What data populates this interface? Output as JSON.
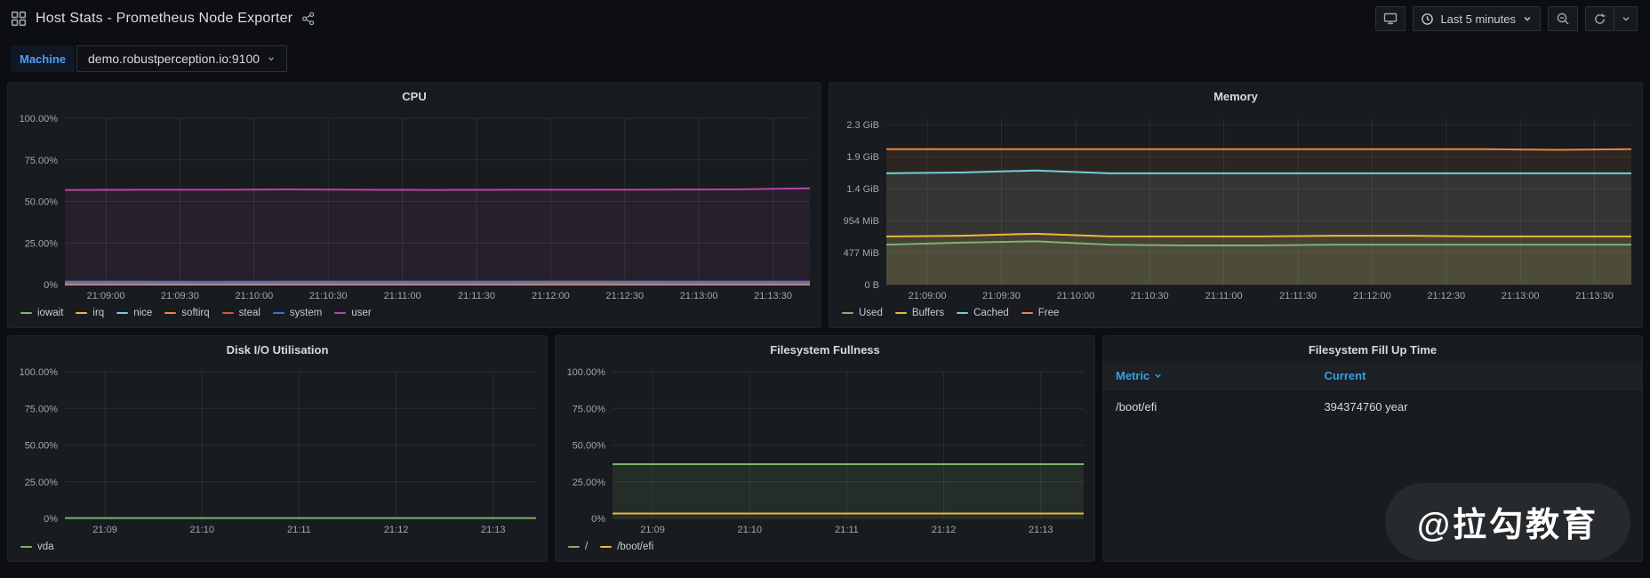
{
  "header": {
    "title": "Host Stats - Prometheus Node Exporter",
    "time_picker_label": "Last 5 minutes"
  },
  "variables": {
    "label": "Machine",
    "value": "demo.robustperception.io:9100"
  },
  "watermark": "@拉勾教育",
  "colors": {
    "green": "#7EB26D",
    "yellow": "#EAB839",
    "cyan": "#6ED0E0",
    "orange": "#EF843C",
    "red": "#E24D42",
    "blue": "#3274D9",
    "purple": "#BA43A9",
    "accent_blue": "#33a2e5"
  },
  "chart_data": [
    {
      "id": "cpu",
      "type": "area",
      "title": "CPU",
      "ylabel": "percent",
      "ylim": [
        0,
        100
      ],
      "y_ticks": [
        {
          "v": 0,
          "label": "0%"
        },
        {
          "v": 25,
          "label": "25.00%"
        },
        {
          "v": 50,
          "label": "50.00%"
        },
        {
          "v": 75,
          "label": "75.00%"
        },
        {
          "v": 100,
          "label": "100.00%"
        }
      ],
      "x_tick_labels": [
        "21:09:00",
        "21:09:30",
        "21:10:00",
        "21:10:30",
        "21:11:00",
        "21:11:30",
        "21:12:00",
        "21:12:30",
        "21:13:00",
        "21:13:30"
      ],
      "x_first_frac": 0.055,
      "x_step_frac": 0.0995,
      "legend_position": "bottom",
      "series": [
        {
          "name": "iowait",
          "color": "#7EB26D",
          "fill_opacity": 0,
          "values": [
            0.3,
            0.3,
            0.3,
            0.3,
            0.3,
            0.3,
            0.3,
            0.3,
            0.3,
            0.3,
            0.3
          ]
        },
        {
          "name": "irq",
          "color": "#EAB839",
          "fill_opacity": 0,
          "values": [
            0.05,
            0.05,
            0.05,
            0.05,
            0.05,
            0.05,
            0.05,
            0.05,
            0.05,
            0.05,
            0.05
          ]
        },
        {
          "name": "nice",
          "color": "#6ED0E0",
          "fill_opacity": 0,
          "values": [
            0.1,
            0.1,
            0.1,
            0.1,
            0.1,
            0.1,
            0.1,
            0.1,
            0.1,
            0.1,
            0.1
          ]
        },
        {
          "name": "softirq",
          "color": "#EF843C",
          "fill_opacity": 0,
          "values": [
            0.9,
            0.9,
            0.9,
            0.9,
            0.9,
            0.9,
            0.9,
            0.9,
            0.9,
            0.9,
            0.9
          ]
        },
        {
          "name": "steal",
          "color": "#E24D42",
          "fill_opacity": 0,
          "values": [
            0.6,
            0.6,
            0.6,
            0.6,
            0.6,
            0.6,
            0.6,
            0.6,
            0.6,
            0.6,
            0.6
          ]
        },
        {
          "name": "system",
          "color": "#3274D9",
          "fill_opacity": 0,
          "values": [
            1.8,
            1.8,
            1.7,
            1.8,
            1.8,
            1.8,
            1.8,
            1.9,
            1.8,
            1.8,
            1.8
          ]
        },
        {
          "name": "user",
          "color": "#BA43A9",
          "fill_opacity": 0.1,
          "values": [
            56.9,
            57,
            57,
            57.2,
            57,
            56.9,
            57,
            57,
            57.1,
            57.2,
            57.9
          ]
        }
      ]
    },
    {
      "id": "memory",
      "type": "area",
      "title": "Memory",
      "ylabel": "bytes (GiB)",
      "ylim": [
        0,
        2.42
      ],
      "y_ticks": [
        {
          "v": 0,
          "label": "0 B"
        },
        {
          "v": 0.466,
          "label": "477 MiB"
        },
        {
          "v": 0.932,
          "label": "954 MiB"
        },
        {
          "v": 1.397,
          "label": "1.4 GiB"
        },
        {
          "v": 1.863,
          "label": "1.9 GiB"
        },
        {
          "v": 2.329,
          "label": "2.3 GiB"
        }
      ],
      "x_tick_labels": [
        "21:09:00",
        "21:09:30",
        "21:10:00",
        "21:10:30",
        "21:11:00",
        "21:11:30",
        "21:12:00",
        "21:12:30",
        "21:13:00",
        "21:13:30"
      ],
      "x_first_frac": 0.055,
      "x_step_frac": 0.0995,
      "legend_position": "bottom",
      "series": [
        {
          "name": "Used",
          "color": "#7EB26D",
          "fill_opacity": 0.1,
          "values": [
            0.58,
            0.61,
            0.63,
            0.58,
            0.57,
            0.57,
            0.58,
            0.58,
            0.58,
            0.58,
            0.58
          ]
        },
        {
          "name": "Buffers",
          "color": "#EAB839",
          "fill_opacity": 0.1,
          "values": [
            0.7,
            0.71,
            0.74,
            0.7,
            0.7,
            0.7,
            0.71,
            0.71,
            0.7,
            0.7,
            0.7
          ]
        },
        {
          "name": "Cached",
          "color": "#6ED0E0",
          "fill_opacity": 0.1,
          "values": [
            1.62,
            1.63,
            1.66,
            1.62,
            1.62,
            1.62,
            1.62,
            1.62,
            1.62,
            1.62,
            1.62
          ]
        },
        {
          "name": "Free",
          "color": "#EF843C",
          "fill_opacity": 0.1,
          "values": [
            1.97,
            1.97,
            1.97,
            1.97,
            1.97,
            1.97,
            1.97,
            1.97,
            1.97,
            1.96,
            1.97
          ]
        }
      ]
    },
    {
      "id": "disk_io",
      "type": "line",
      "title": "Disk I/O Utilisation",
      "ylabel": "percent",
      "ylim": [
        0,
        100
      ],
      "y_ticks": [
        {
          "v": 0,
          "label": "0%"
        },
        {
          "v": 25,
          "label": "25.00%"
        },
        {
          "v": 50,
          "label": "50.00%"
        },
        {
          "v": 75,
          "label": "75.00%"
        },
        {
          "v": 100,
          "label": "100.00%"
        }
      ],
      "x_tick_labels": [
        "21:09",
        "21:10",
        "21:11",
        "21:12",
        "21:13"
      ],
      "x_first_frac": 0.085,
      "x_step_frac": 0.206,
      "legend_position": "bottom",
      "series": [
        {
          "name": "vda",
          "color": "#7EB26D",
          "fill_opacity": 0.08,
          "values": [
            0.2,
            0.2,
            0.2,
            0.2,
            0.2,
            0.2,
            0.2,
            0.2,
            0.2,
            0.2,
            0.2
          ]
        }
      ]
    },
    {
      "id": "fs_fullness",
      "type": "area",
      "title": "Filesystem Fullness",
      "ylabel": "percent",
      "ylim": [
        0,
        100
      ],
      "y_ticks": [
        {
          "v": 0,
          "label": "0%"
        },
        {
          "v": 25,
          "label": "25.00%"
        },
        {
          "v": 50,
          "label": "50.00%"
        },
        {
          "v": 75,
          "label": "75.00%"
        },
        {
          "v": 100,
          "label": "100.00%"
        }
      ],
      "x_tick_labels": [
        "21:09",
        "21:10",
        "21:11",
        "21:12",
        "21:13"
      ],
      "x_first_frac": 0.085,
      "x_step_frac": 0.206,
      "legend_position": "bottom",
      "series": [
        {
          "name": "/",
          "color": "#7EB26D",
          "fill_opacity": 0.12,
          "values": [
            37,
            37,
            37,
            37,
            37,
            37,
            37,
            37,
            37,
            37,
            37
          ]
        },
        {
          "name": "/boot/efi",
          "color": "#EAB839",
          "fill_opacity": 0,
          "values": [
            3.3,
            3.3,
            3.3,
            3.3,
            3.3,
            3.3,
            3.3,
            3.3,
            3.3,
            3.3,
            3.3
          ]
        }
      ]
    },
    {
      "id": "fs_fill_up_time",
      "type": "table",
      "title": "Filesystem Fill Up Time",
      "columns": [
        "Metric",
        "Current"
      ],
      "rows": [
        [
          "/boot/efi",
          "394374760 year"
        ]
      ]
    }
  ]
}
